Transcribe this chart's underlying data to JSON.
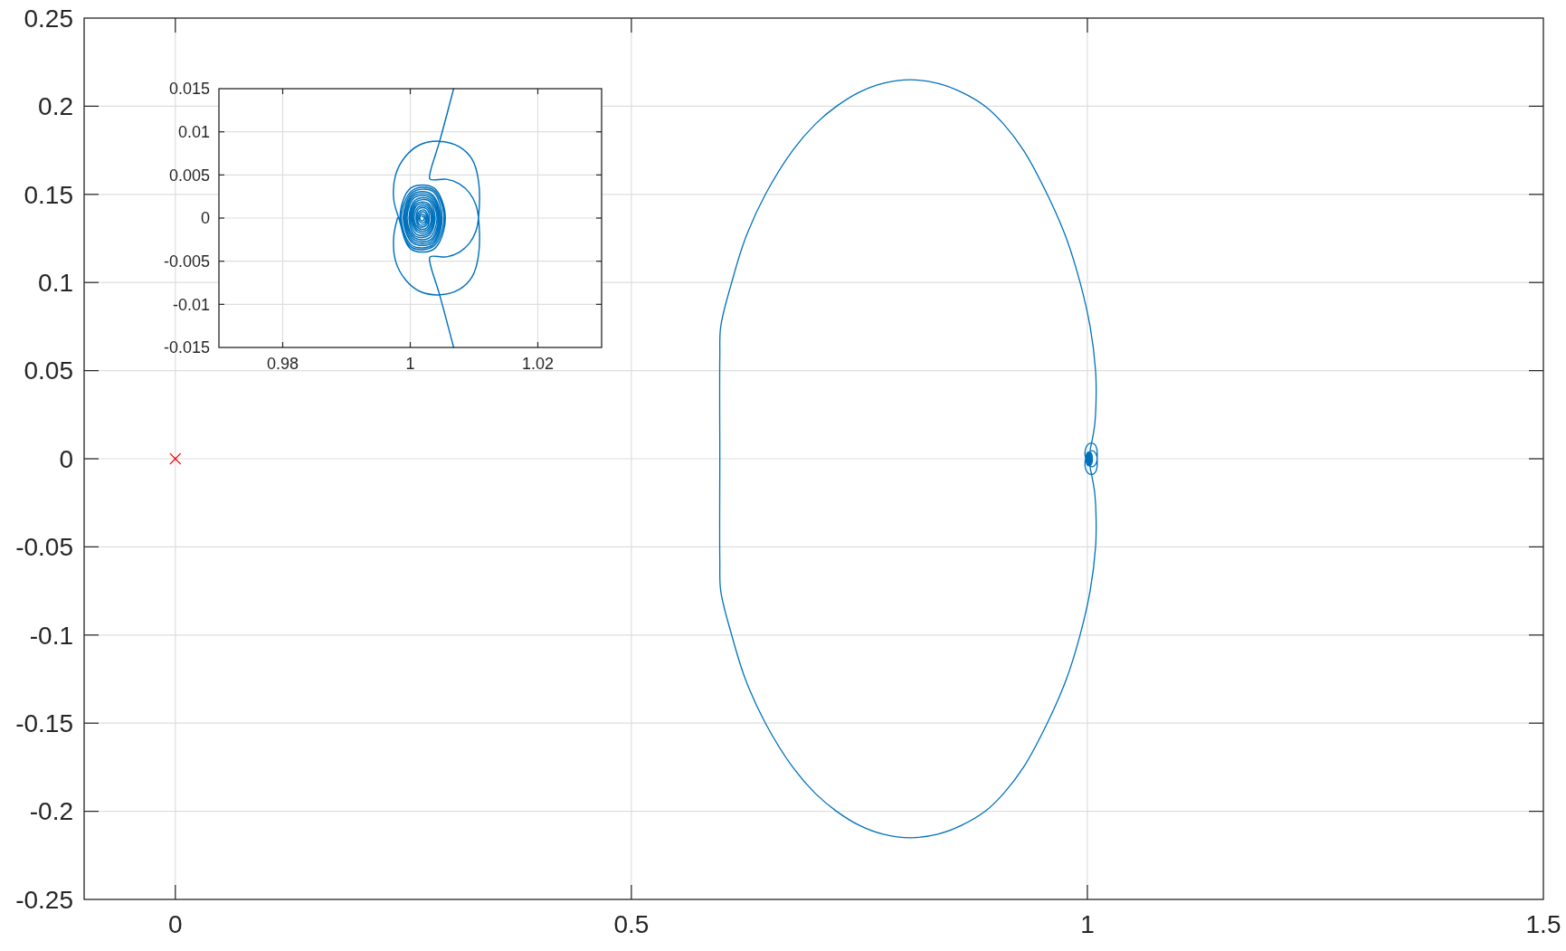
{
  "chart_data": [
    {
      "type": "line",
      "xlim": [
        -0.1,
        1.5
      ],
      "ylim": [
        -0.25,
        0.25
      ],
      "xticks": [
        0,
        0.5,
        1,
        1.5
      ],
      "yticks": [
        -0.25,
        -0.2,
        -0.15,
        -0.1,
        -0.05,
        0,
        0.05,
        0.1,
        0.15,
        0.2,
        0.25
      ],
      "grid": true,
      "series": [
        {
          "color": "#0072bd",
          "x": [
            0.998,
            0.9974,
            0.9977,
            0.9992,
            1.0015,
            1.0046,
            1.0076,
            1.0097,
            1.0107,
            1.0107,
            1.0103,
            1.0093,
            1.0076,
            1.0057,
            1.0031,
            1.0031,
            1.0046,
            1.0068,
            1.0082,
            1.0096,
            1.009,
            1.003,
            0.992,
            0.977,
            0.956,
            0.93,
            0.908,
            0.888,
            0.862,
            0.836,
            0.806,
            0.776,
            0.75,
            0.725,
            0.702,
            0.677,
            0.647,
            0.625,
            0.61,
            0.598,
            0.597,
            0.597,
            0.597,
            0.598,
            0.61,
            0.625,
            0.647,
            0.677,
            0.702,
            0.725,
            0.75,
            0.776,
            0.806,
            0.836,
            0.862,
            0.888,
            0.908,
            0.93,
            0.956,
            0.977,
            0.992,
            1.003,
            1.009,
            1.0096,
            1.0082,
            1.0068,
            1.0046,
            1.0031,
            1.0031,
            1.0057,
            1.0076,
            1.0093,
            1.0103,
            1.0107,
            1.0107,
            1.0097,
            1.0076,
            1.0046,
            1.0015,
            0.9992,
            0.9977,
            0.9974,
            0.9982,
            1.0001,
            1.0037,
            1.0055,
            1.0037,
            1.0001,
            0.9984,
            1.0002,
            1.0036,
            1.0053,
            1.0036,
            1.0003,
            0.9986,
            1.0003,
            1.0035,
            1.005,
            1.0035,
            1.0004,
            0.9989,
            1.0004,
            1.0034,
            1.0048,
            1.0033,
            1.0005,
            0.9991,
            1.0005,
            1.0033,
            1.0046,
            1.0032,
            1.0006,
            0.9993,
            1.0006,
            1.0032,
            1.0044,
            1.0031,
            1.0007,
            0.9995,
            1.0007,
            1.003,
            1.0042,
            1.003,
            1.0008,
            0.9998,
            1.0008,
            1.0029,
            1.0039,
            1.0029,
            1.0009,
            1,
            1.001,
            1.0028,
            1.0037,
            1.0028,
            1.001,
            1.0002,
            1.0011,
            1.0027,
            1.0035,
            1.0027,
            1.0011,
            1.0004,
            1.0012,
            1.0026,
            1.0033,
            1.0026,
            1.0013,
            1.0006,
            1.0013,
            1.0025,
            1.003,
            1.0025,
            1.0014,
            1.0009,
            1.0014,
            1.0024,
            1.0028,
            1.0023,
            1.0015,
            1.0011,
            1.0015,
            1.0023,
            1.0026,
            1.0022,
            1.0016,
            1.0013,
            1.0016,
            1.0022,
            1.0024,
            1.0021,
            1.0017,
            1.0015,
            1.0017,
            1.002,
            1.0022,
            1.002,
            1.0018
          ],
          "values": [
            0,
            -0.0022,
            -0.005,
            -0.0071,
            -0.0085,
            -0.0089,
            -0.0083,
            -0.0068,
            -0.0043,
            0,
            0.0015,
            0.0029,
            0.004,
            0.0045,
            0.0045,
            0.0052,
            0.0089,
            0.015,
            0.02,
            0.035,
            0.05,
            0.075,
            0.1,
            0.125,
            0.15,
            0.175,
            0.19,
            0.2,
            0.208,
            0.213,
            0.215,
            0.213,
            0.208,
            0.2,
            0.19,
            0.175,
            0.15,
            0.125,
            0.1,
            0.075,
            0.058,
            0,
            -0.058,
            -0.075,
            -0.1,
            -0.125,
            -0.15,
            -0.175,
            -0.19,
            -0.2,
            -0.208,
            -0.213,
            -0.215,
            -0.213,
            -0.208,
            -0.2,
            -0.19,
            -0.175,
            -0.15,
            -0.125,
            -0.1,
            -0.075,
            -0.05,
            -0.035,
            -0.02,
            -0.015,
            -0.0089,
            -0.0052,
            -0.0045,
            -0.0045,
            -0.004,
            -0.0029,
            -0.0015,
            0,
            0.0043,
            0.0068,
            0.0083,
            0.0089,
            0.0085,
            0.0071,
            0.005,
            0.0022,
            0,
            -0.0036,
            -0.0036,
            0,
            0.0035,
            0.0035,
            0,
            -0.0034,
            -0.0033,
            0,
            0.0033,
            0.0032,
            0,
            -0.0032,
            -0.0031,
            0,
            0.0031,
            0.003,
            0,
            -0.0029,
            -0.0029,
            0,
            0.0028,
            0.0028,
            0,
            -0.0027,
            -0.0027,
            0,
            0.0026,
            0.0026,
            0,
            -0.0025,
            -0.0025,
            0,
            0.0024,
            0.0024,
            0,
            -0.0023,
            -0.0023,
            0,
            0.0022,
            0.0021,
            0,
            -0.0021,
            -0.002,
            0,
            0.002,
            0.0019,
            0,
            -0.0019,
            -0.0018,
            0,
            0.0017,
            0.0017,
            0,
            -0.0016,
            -0.0016,
            0,
            0.0015,
            0.0015,
            0,
            -0.0014,
            -0.0014,
            0,
            0.0013,
            0.0013,
            0,
            -0.0012,
            -0.0012,
            0,
            0.0011,
            0.0011,
            0,
            -0.001,
            -0.0009,
            0,
            0.0009,
            0.0008,
            0,
            -0.0008,
            -0.0007,
            0,
            0.0007,
            0.0006,
            0,
            -0.0005,
            -0.0005,
            0,
            0.0004,
            0.0004,
            0,
            -0.0003,
            -0.0003,
            0,
            0.0002,
            0.0002
          ]
        },
        {
          "type": "scatter",
          "color": "#ff0000",
          "marker": "cross",
          "x": [
            0
          ],
          "values": [
            0
          ]
        }
      ]
    },
    {
      "type": "line",
      "xlim": [
        0.97,
        1.03
      ],
      "ylim": [
        -0.015,
        0.015
      ],
      "xticks": [
        0.98,
        1,
        1.02
      ],
      "yticks": [
        -0.015,
        -0.01,
        -0.005,
        0,
        0.005,
        0.01,
        0.015
      ],
      "grid": true,
      "series": [
        {
          "color": "#0072bd",
          "x": [
            0.998,
            0.9974,
            0.9977,
            0.9992,
            1.0015,
            1.0046,
            1.0076,
            1.0097,
            1.0107,
            1.0107,
            1.0103,
            1.0093,
            1.0076,
            1.0057,
            1.0031,
            1.0031,
            1.0046,
            1.0068,
            null,
            1.0068,
            1.0046,
            1.0031,
            1.0031,
            1.0057,
            1.0076,
            1.0093,
            1.0103,
            1.0107,
            1.0107,
            1.0097,
            1.0076,
            1.0046,
            1.0015,
            0.9992,
            0.9977,
            0.9974,
            0.9982,
            1.0001,
            1.0037,
            1.0055,
            1.0037,
            1.0001,
            0.9984,
            1.0002,
            1.0036,
            1.0053,
            1.0036,
            1.0003,
            0.9986,
            1.0003,
            1.0035,
            1.005,
            1.0035,
            1.0004,
            0.9989,
            1.0004,
            1.0034,
            1.0048,
            1.0033,
            1.0005,
            0.9991,
            1.0005,
            1.0033,
            1.0046,
            1.0032,
            1.0006,
            0.9993,
            1.0006,
            1.0032,
            1.0044,
            1.0031,
            1.0007,
            0.9995,
            1.0007,
            1.003,
            1.0042,
            1.003,
            1.0008,
            0.9998,
            1.0008,
            1.0029,
            1.0039,
            1.0029,
            1.0009,
            1,
            1.001,
            1.0028,
            1.0037,
            1.0028,
            1.001,
            1.0002,
            1.0011,
            1.0027,
            1.0035,
            1.0027,
            1.0011,
            1.0004,
            1.0012,
            1.0026,
            1.0033,
            1.0026,
            1.0013,
            1.0006,
            1.0013,
            1.0025,
            1.003,
            1.0025,
            1.0014,
            1.0009,
            1.0014,
            1.0024,
            1.0028,
            1.0023,
            1.0015,
            1.0011,
            1.0015,
            1.0023,
            1.0026,
            1.0022,
            1.0016,
            1.0013,
            1.0016,
            1.0022,
            1.0024,
            1.0021,
            1.0017,
            1.0015,
            1.0017,
            1.002,
            1.0022,
            1.002,
            1.0018
          ],
          "values": [
            0,
            -0.0022,
            -0.005,
            -0.0071,
            -0.0085,
            -0.0089,
            -0.0083,
            -0.0068,
            -0.0043,
            0,
            0.0015,
            0.0029,
            0.004,
            0.0045,
            0.0045,
            0.0052,
            0.0089,
            0.015,
            null,
            -0.015,
            -0.0089,
            -0.0052,
            -0.0045,
            -0.0045,
            -0.004,
            -0.0029,
            -0.0015,
            0,
            0.0043,
            0.0068,
            0.0083,
            0.0089,
            0.0085,
            0.0071,
            0.005,
            0.0022,
            0,
            -0.0036,
            -0.0036,
            0,
            0.0035,
            0.0035,
            0,
            -0.0034,
            -0.0033,
            0,
            0.0033,
            0.0032,
            0,
            -0.0032,
            -0.0031,
            0,
            0.0031,
            0.003,
            0,
            -0.0029,
            -0.0029,
            0,
            0.0028,
            0.0028,
            0,
            -0.0027,
            -0.0027,
            0,
            0.0026,
            0.0026,
            0,
            -0.0025,
            -0.0025,
            0,
            0.0024,
            0.0024,
            0,
            -0.0023,
            -0.0023,
            0,
            0.0022,
            0.0021,
            0,
            -0.0021,
            -0.002,
            0,
            0.002,
            0.0019,
            0,
            -0.0019,
            -0.0018,
            0,
            0.0017,
            0.0017,
            0,
            -0.0016,
            -0.0016,
            0,
            0.0015,
            0.0015,
            0,
            -0.0014,
            -0.0014,
            0,
            0.0013,
            0.0013,
            0,
            -0.0012,
            -0.0012,
            0,
            0.0011,
            0.0011,
            0,
            -0.001,
            -0.0009,
            0,
            0.0009,
            0.0008,
            0,
            -0.0008,
            -0.0007,
            0,
            0.0007,
            0.0006,
            0,
            -0.0005,
            -0.0005,
            0,
            0.0004,
            0.0004,
            0,
            -0.0003,
            -0.0003,
            0,
            0.0002,
            0.0002
          ]
        }
      ]
    }
  ]
}
